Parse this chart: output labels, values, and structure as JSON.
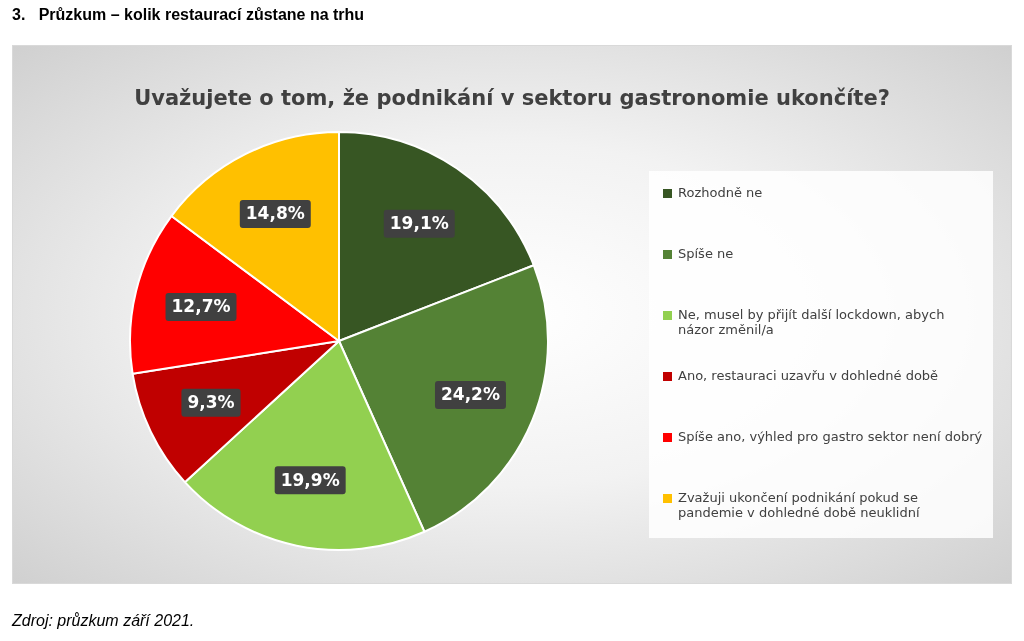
{
  "chart_data": {
    "type": "pie",
    "title": "Uvažujete o tom, že podnikání v sektoru gastronomie ukončíte?",
    "subtitle": "3.   Průzkum – kolik restaurací zůstane na trhu",
    "categories": [
      "Rozhodně ne",
      "Spíše ne",
      "Ne, musel by přijít další lockdown, abych názor změnil/a",
      "Ano, restauraci uzavřu v dohledné době",
      "Spíše ano, výhled pro gastro sektor není dobrý",
      "Zvažuji ukončení podnikání pokud se pandemie v dohledné době neuklidní"
    ],
    "values": [
      19.1,
      24.2,
      19.9,
      9.3,
      12.7,
      14.8
    ],
    "colors": [
      "#375623",
      "#548235",
      "#92d050",
      "#c00000",
      "#ff0000",
      "#ffc000"
    ],
    "value_labels": [
      "19,1%",
      "24,2%",
      "19,9%",
      "9,3%",
      "12,7%",
      "14,8%"
    ],
    "legend": "right",
    "annotations": [
      "Zdroj: průzkum září 2021."
    ]
  }
}
